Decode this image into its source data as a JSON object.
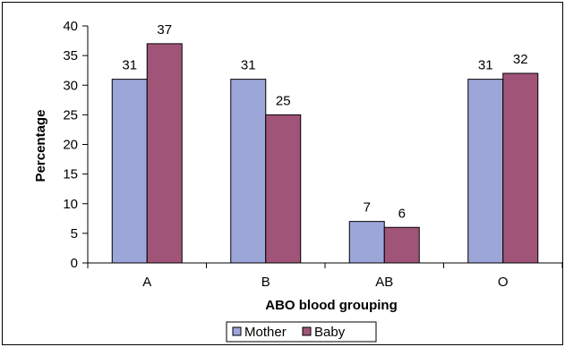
{
  "chart_data": {
    "type": "bar",
    "title": "",
    "xlabel": "ABO blood grouping",
    "ylabel": "Percentage",
    "categories": [
      "A",
      "B",
      "AB",
      "O"
    ],
    "ylim": [
      0,
      40
    ],
    "yticks": [
      0,
      5,
      10,
      15,
      20,
      25,
      30,
      35,
      40
    ],
    "grid": false,
    "legend_position": "bottom",
    "series": [
      {
        "name": "Mother",
        "values": [
          31,
          31,
          7,
          31
        ],
        "color": "#9ca6d8"
      },
      {
        "name": "Baby",
        "values": [
          37,
          25,
          6,
          32
        ],
        "color": "#a05478"
      }
    ]
  }
}
